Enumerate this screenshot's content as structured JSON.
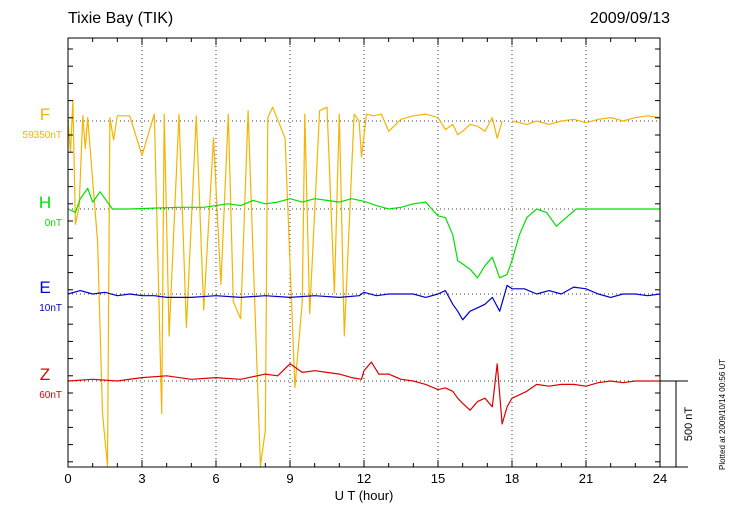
{
  "header": {
    "station": "Tixie Bay (TIK)",
    "date": "2009/09/13"
  },
  "side_note": "Plotted at 2009/10/14 00:56 UT",
  "colors": {
    "F": "#f5b400",
    "H": "#00e000",
    "E": "#0000cc",
    "Z": "#dd0000",
    "grid": "#000000",
    "axis": "#000000"
  },
  "chart_data": {
    "type": "line",
    "title": "Tixie Bay (TIK)",
    "xlabel": "U T (hour)",
    "ylabel": "",
    "xlim": [
      0,
      24
    ],
    "x_ticks": [
      0,
      3,
      6,
      9,
      12,
      15,
      18,
      21,
      24
    ],
    "grid": true,
    "scale_bar": {
      "label": "500 nT",
      "value_nT": 500
    },
    "series": [
      {
        "name": "F",
        "baseline_label": "59350nT",
        "color": "#f5b400",
        "x": [
          0,
          0.1,
          0.2,
          0.3,
          0.45,
          0.6,
          0.7,
          0.8,
          1.0,
          1.2,
          1.4,
          1.6,
          1.7,
          1.85,
          2.0,
          2.5,
          3.0,
          3.5,
          3.8,
          3.9,
          4.1,
          4.5,
          4.8,
          5.2,
          5.5,
          5.9,
          6.2,
          6.5,
          6.7,
          7.0,
          7.3,
          7.8,
          8.0,
          8.1,
          8.3,
          8.8,
          9.2,
          9.5,
          9.6,
          9.8,
          10.2,
          10.5,
          10.8,
          11.0,
          11.2,
          11.6,
          11.8,
          11.9,
          12.1,
          12.4,
          12.7,
          13.0,
          13.5,
          14.0,
          14.5,
          15.0,
          15.3,
          15.6,
          15.8,
          16.0,
          16.3,
          16.6,
          16.9,
          17.2,
          17.4,
          17.6,
          17.8,
          18.0,
          18.6,
          19.0,
          19.5,
          20.0,
          20.5,
          21.0,
          21.5,
          22.0,
          22.5,
          23.0,
          23.5,
          24.0
        ],
        "values": [
          0,
          -180,
          120,
          -600,
          -500,
          30,
          -160,
          20,
          -350,
          -700,
          -1700,
          -2650,
          20,
          -110,
          30,
          30,
          -200,
          40,
          -1700,
          40,
          -1250,
          40,
          -1200,
          30,
          -1100,
          -100,
          -950,
          40,
          -1050,
          -1150,
          60,
          -2100,
          -1800,
          20,
          80,
          -100,
          -1550,
          -1050,
          40,
          -1120,
          60,
          80,
          -1000,
          40,
          -1250,
          40,
          0,
          -210,
          40,
          30,
          40,
          -60,
          10,
          30,
          40,
          20,
          -50,
          -20,
          -80,
          -60,
          -20,
          -30,
          -60,
          20,
          -100,
          0,
          null,
          0,
          -20,
          0,
          -20,
          0,
          10,
          -10,
          10,
          20,
          0,
          20,
          30,
          20
        ]
      },
      {
        "name": "H",
        "baseline_label": "0nT",
        "color": "#00e000",
        "x": [
          0,
          0.3,
          0.5,
          0.8,
          1.0,
          1.3,
          1.5,
          1.8,
          2.5,
          3.5,
          4.5,
          5.5,
          6.5,
          7.0,
          7.5,
          8.0,
          8.5,
          9.0,
          9.5,
          10.0,
          10.5,
          11.0,
          11.5,
          12.0,
          12.5,
          13.0,
          13.5,
          14.0,
          14.5,
          15.0,
          15.3,
          15.6,
          15.8,
          16.0,
          16.3,
          16.6,
          16.9,
          17.2,
          17.5,
          17.8,
          18.0,
          18.3,
          18.6,
          19.0,
          19.4,
          19.8,
          20.2,
          20.6,
          21.0,
          21.5,
          22.0,
          22.5,
          23.0,
          23.5,
          24.0
        ],
        "values": [
          0,
          -20,
          60,
          120,
          40,
          100,
          60,
          0,
          0,
          5,
          10,
          10,
          30,
          20,
          50,
          30,
          40,
          60,
          40,
          60,
          50,
          40,
          60,
          45,
          20,
          0,
          10,
          30,
          40,
          -40,
          -50,
          -150,
          -300,
          -320,
          -350,
          -400,
          -330,
          -280,
          -400,
          -380,
          -300,
          -150,
          -50,
          0,
          -20,
          -100,
          -50,
          0,
          0,
          0,
          0,
          0,
          0,
          0,
          0
        ]
      },
      {
        "name": "E",
        "baseline_label": "10nT",
        "color": "#0000cc",
        "x": [
          0,
          0.5,
          1.0,
          1.5,
          2.0,
          2.5,
          3.0,
          3.5,
          4.0,
          5.0,
          6.0,
          7.0,
          8.0,
          9.0,
          10.0,
          11.0,
          11.8,
          12.0,
          12.5,
          13.0,
          14.0,
          14.5,
          15.0,
          15.3,
          15.6,
          15.8,
          16.0,
          16.3,
          16.6,
          16.9,
          17.2,
          17.5,
          17.8,
          18.0,
          18.5,
          19.0,
          19.5,
          20.0,
          20.5,
          21.0,
          21.5,
          22.0,
          22.5,
          23.0,
          23.5,
          24.0
        ],
        "values": [
          0,
          20,
          0,
          10,
          -10,
          0,
          -10,
          -10,
          -20,
          -20,
          -10,
          -20,
          -10,
          -20,
          -10,
          -20,
          -10,
          10,
          -10,
          0,
          0,
          -20,
          0,
          20,
          -60,
          -100,
          -150,
          -100,
          -80,
          -60,
          -20,
          -100,
          50,
          30,
          30,
          0,
          20,
          0,
          40,
          30,
          0,
          -20,
          0,
          0,
          -10,
          0
        ]
      },
      {
        "name": "Z",
        "baseline_label": "60nT",
        "color": "#dd0000",
        "x": [
          0,
          1.0,
          2.0,
          3.0,
          4.0,
          5.0,
          6.0,
          7.0,
          8.0,
          8.5,
          9.0,
          9.5,
          10.0,
          10.5,
          11.0,
          11.5,
          11.9,
          12.0,
          12.3,
          12.6,
          13.0,
          13.5,
          14.0,
          14.5,
          15.0,
          15.3,
          15.6,
          15.8,
          16.0,
          16.3,
          16.6,
          16.9,
          17.2,
          17.4,
          17.6,
          17.8,
          18.0,
          18.3,
          18.6,
          19.0,
          19.5,
          20.0,
          20.5,
          21.0,
          21.5,
          22.0,
          22.5,
          23.0,
          23.5,
          24.0
        ],
        "values": [
          0,
          10,
          0,
          20,
          30,
          10,
          20,
          10,
          40,
          30,
          100,
          50,
          60,
          50,
          40,
          20,
          10,
          60,
          110,
          40,
          40,
          10,
          0,
          -20,
          -50,
          -40,
          -60,
          -100,
          -130,
          -170,
          -120,
          -100,
          -150,
          100,
          -250,
          -150,
          -100,
          -80,
          -60,
          -20,
          -30,
          -20,
          -20,
          -30,
          -10,
          0,
          -10,
          0,
          0,
          0
        ]
      }
    ]
  }
}
